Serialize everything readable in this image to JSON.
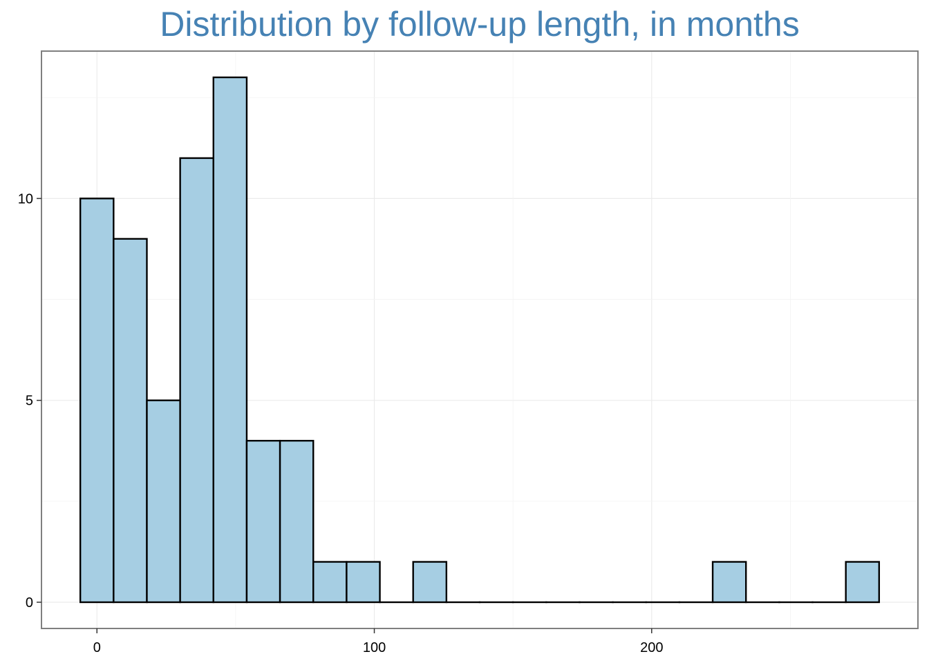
{
  "chart_data": {
    "type": "bar",
    "title": "Distribution by follow-up length, in months",
    "xlabel": "",
    "ylabel": "",
    "bin_width": 12,
    "bin_starts": [
      -6,
      6,
      18,
      30,
      42,
      54,
      66,
      78,
      90,
      102,
      114,
      126,
      138,
      150,
      162,
      174,
      186,
      198,
      210,
      222,
      234,
      246,
      258,
      270
    ],
    "values": [
      10,
      9,
      5,
      11,
      13,
      4,
      4,
      1,
      1,
      0,
      1,
      0,
      0,
      0,
      0,
      0,
      0,
      0,
      0,
      1,
      0,
      0,
      0,
      1
    ],
    "xlim": [
      -20,
      296
    ],
    "ylim": [
      -0.65,
      13.65
    ],
    "x_ticks": [
      0,
      100,
      200
    ],
    "x_tick_labels": [
      "0",
      "100",
      "200"
    ],
    "y_ticks": [
      0,
      5,
      10
    ],
    "y_tick_labels": [
      "0",
      "5",
      "10"
    ],
    "grid": true,
    "legend": false,
    "colors": {
      "bar_fill": "#a6cee3",
      "bar_stroke": "#000000",
      "title": "#4682b4",
      "grid": "#ebebeb",
      "panel_border": "#7f7f7f"
    }
  }
}
